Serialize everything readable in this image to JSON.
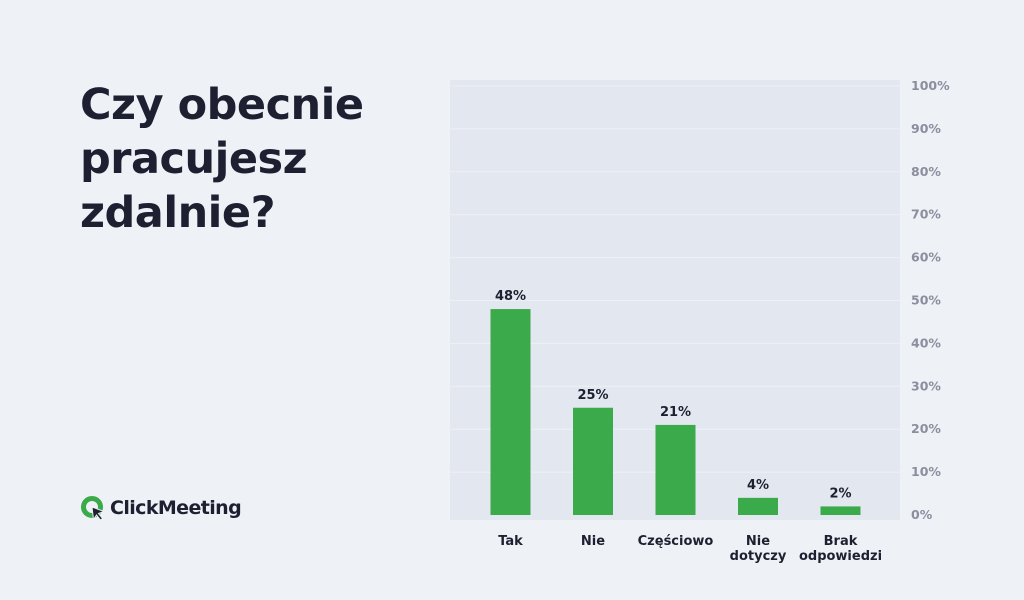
{
  "title": "Czy obecnie pracujesz zdalnie?",
  "logo": {
    "text": "ClickMeeting",
    "accent_color": "#3aaa4a"
  },
  "colors": {
    "background": "#eef1f6",
    "plot_area": "#e3e7ef",
    "bar": "#3aaa4a",
    "text_dark": "#1d2030",
    "tick_text": "#8a8e9e",
    "grid": "#eef1f6"
  },
  "chart_data": {
    "type": "bar",
    "categories": [
      "Tak",
      "Nie",
      "Częściowo",
      "Nie dotyczy",
      "Brak odpowiedzi"
    ],
    "values": [
      48,
      25,
      21,
      4,
      2
    ],
    "data_labels": [
      "48%",
      "25%",
      "21%",
      "4%",
      "2%"
    ],
    "yticks": [
      "0%",
      "10%",
      "20%",
      "30%",
      "40%",
      "50%",
      "60%",
      "70%",
      "80%",
      "90%",
      "100%"
    ],
    "ylim": [
      0,
      100
    ],
    "y_axis_side": "right",
    "grid": true,
    "legend": false
  }
}
